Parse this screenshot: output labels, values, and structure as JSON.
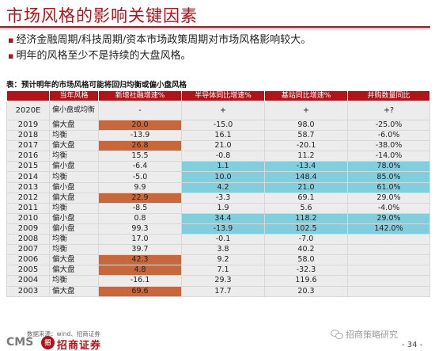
{
  "slide": {
    "title": "市场风格的影响关键因素",
    "bullets": [
      "经济金融周期/科技周期/资本市场政策周期对市场风格影响较大。",
      "明年的风格至少不是持续的大盘风格。"
    ]
  },
  "table": {
    "caption": "表：预计明年的市场风格可能将回归均衡或偏小盘风格",
    "headers": [
      "",
      "当年风格",
      "新增社融增速%",
      "半导体同比增速%",
      "基站同比增速%",
      "并购数量同比"
    ],
    "rows": [
      {
        "year": "2020E",
        "style": "偏小盘或均衡",
        "social_finance": "-",
        "semiconductor": "+",
        "base_station": "+",
        "mna": "+?"
      },
      {
        "year": "2019",
        "style": "偏大盘",
        "social_finance": "20.0",
        "semiconductor": "-15.0",
        "base_station": "98.0",
        "mna": "-25.0%"
      },
      {
        "year": "2018",
        "style": "均衡",
        "social_finance": "-13.9",
        "semiconductor": "16.1",
        "base_station": "58.7",
        "mna": "-6.0%"
      },
      {
        "year": "2017",
        "style": "偏大盘",
        "social_finance": "26.8",
        "semiconductor": "21.0",
        "base_station": "-20.1",
        "mna": "-38.0%"
      },
      {
        "year": "2016",
        "style": "均衡",
        "social_finance": "15.5",
        "semiconductor": "-0.8",
        "base_station": "11.2",
        "mna": "-14.0%"
      },
      {
        "year": "2015",
        "style": "偏小盘",
        "social_finance": "-6.4",
        "semiconductor": "1.1",
        "base_station": "-13.4",
        "mna": "78.0%"
      },
      {
        "year": "2014",
        "style": "均衡",
        "social_finance": "-5.0",
        "semiconductor": "10.0",
        "base_station": "148.4",
        "mna": "85.0%"
      },
      {
        "year": "2013",
        "style": "偏小盘",
        "social_finance": "9.9",
        "semiconductor": "4.2",
        "base_station": "21.0",
        "mna": "61.0%"
      },
      {
        "year": "2012",
        "style": "偏大盘",
        "social_finance": "22.9",
        "semiconductor": "-3.3",
        "base_station": "69.1",
        "mna": "29.0%"
      },
      {
        "year": "2011",
        "style": "均衡",
        "social_finance": "-8.5",
        "semiconductor": "1.9",
        "base_station": "5.6",
        "mna": "-4.0%"
      },
      {
        "year": "2010",
        "style": "偏小盘",
        "social_finance": "0.8",
        "semiconductor": "34.4",
        "base_station": "118.2",
        "mna": "29.0%"
      },
      {
        "year": "2009",
        "style": "偏小盘",
        "social_finance": "99.3",
        "semiconductor": "-13.9",
        "base_station": "102.5",
        "mna": "142.0%"
      },
      {
        "year": "2008",
        "style": "均衡",
        "social_finance": "17.0",
        "semiconductor": "-0.1",
        "base_station": "-7.0",
        "mna": ""
      },
      {
        "year": "2007",
        "style": "均衡",
        "social_finance": "39.7",
        "semiconductor": "3.8",
        "base_station": "40.2",
        "mna": ""
      },
      {
        "year": "2006",
        "style": "偏大盘",
        "social_finance": "42.3",
        "semiconductor": "9.2",
        "base_station": "58.0",
        "mna": ""
      },
      {
        "year": "2005",
        "style": "偏大盘",
        "social_finance": "4.8",
        "semiconductor": "7.1",
        "base_station": "-32.3",
        "mna": ""
      },
      {
        "year": "2004",
        "style": "均衡",
        "social_finance": "-16.1",
        "semiconductor": "29.3",
        "base_station": "119.6",
        "mna": ""
      },
      {
        "year": "2003",
        "style": "偏大盘",
        "social_finance": "69.6",
        "semiconductor": "17.7",
        "base_station": "20.3",
        "mna": ""
      }
    ],
    "highlight_colors": {
      "orange": "#c8673a",
      "blue": "#7fcfdf",
      "header": "#b31218"
    }
  },
  "footer": {
    "source": "数据来源：wind、招商证券",
    "logo_latin": "CMS",
    "logo_mark": "招",
    "logo_cn": "招商证券",
    "wechat_label": "招商策略研究",
    "page": "- 34 -"
  },
  "colors": {
    "brand_red": "#b31218"
  }
}
